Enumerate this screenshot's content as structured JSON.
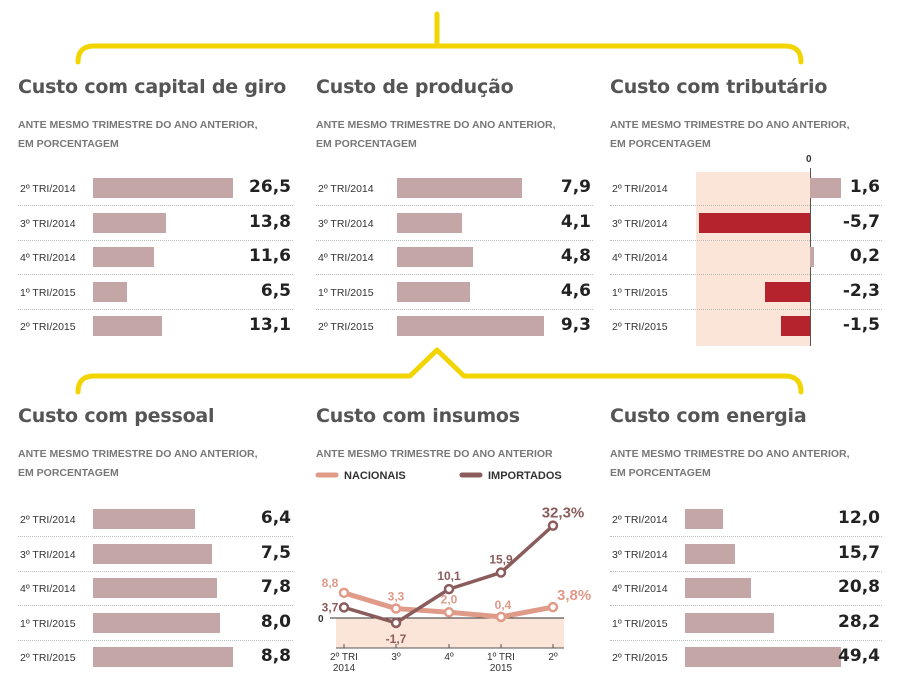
{
  "colors": {
    "accent": "#f2d400",
    "bar": "#c4a6a6",
    "negative": "#b5242c",
    "shade": "#fbe4d8",
    "nacionais": "#e09a88",
    "importados": "#8b5c5c"
  },
  "panels": [
    {
      "id": "capital-giro",
      "title": "Custo com capital de giro",
      "subtitle": [
        "ANTE MESMO TRIMESTRE DO ANO ANTERIOR,",
        "EM PORCENTAGEM"
      ],
      "rows": [
        {
          "label": "2º TRI/2014",
          "value": 26.5,
          "display": "26,5"
        },
        {
          "label": "3º TRI/2014",
          "value": 13.8,
          "display": "13,8"
        },
        {
          "label": "4º TRI/2014",
          "value": 11.6,
          "display": "11,6"
        },
        {
          "label": "1º TRI/2015",
          "value": 6.5,
          "display": "6,5"
        },
        {
          "label": "2º TRI/2015",
          "value": 13.1,
          "display": "13,1"
        }
      ]
    },
    {
      "id": "producao",
      "title": "Custo de produção",
      "subtitle": [
        "ANTE MESMO TRIMESTRE DO ANO ANTERIOR,",
        "EM PORCENTAGEM"
      ],
      "rows": [
        {
          "label": "2º TRI/2014",
          "value": 7.9,
          "display": "7,9"
        },
        {
          "label": "3º TRI/2014",
          "value": 4.1,
          "display": "4,1"
        },
        {
          "label": "4º TRI/2014",
          "value": 4.8,
          "display": "4,8"
        },
        {
          "label": "1º TRI/2015",
          "value": 4.6,
          "display": "4,6"
        },
        {
          "label": "2º TRI/2015",
          "value": 9.3,
          "display": "9,3"
        }
      ]
    },
    {
      "id": "tributario",
      "title": "Custo com tributário",
      "subtitle": [
        "ANTE MESMO TRIMESTRE DO ANO ANTERIOR,",
        "EM PORCENTAGEM"
      ],
      "zero_label": "0",
      "rows": [
        {
          "label": "2º TRI/2014",
          "value": 1.6,
          "display": "1,6"
        },
        {
          "label": "3º TRI/2014",
          "value": -5.7,
          "display": "-5,7"
        },
        {
          "label": "4º TRI/2014",
          "value": 0.2,
          "display": "0,2"
        },
        {
          "label": "1º TRI/2015",
          "value": -2.3,
          "display": "-2,3"
        },
        {
          "label": "2º TRI/2015",
          "value": -1.5,
          "display": "-1,5"
        }
      ]
    },
    {
      "id": "pessoal",
      "title": "Custo com pessoal",
      "subtitle": [
        "ANTE MESMO TRIMESTRE DO ANO ANTERIOR,",
        "EM PORCENTAGEM"
      ],
      "rows": [
        {
          "label": "2º TRI/2014",
          "value": 6.4,
          "display": "6,4"
        },
        {
          "label": "3º TRI/2014",
          "value": 7.5,
          "display": "7,5"
        },
        {
          "label": "4º TRI/2014",
          "value": 7.8,
          "display": "7,8"
        },
        {
          "label": "1º TRI/2015",
          "value": 8.0,
          "display": "8,0"
        },
        {
          "label": "2º TRI/2015",
          "value": 8.8,
          "display": "8,8"
        }
      ]
    },
    {
      "id": "energia",
      "title": "Custo com energia",
      "subtitle": [
        "ANTE MESMO TRIMESTRE DO ANO ANTERIOR,",
        "EM PORCENTAGEM"
      ],
      "rows": [
        {
          "label": "2º TRI/2014",
          "value": 12.0,
          "display": "12,0"
        },
        {
          "label": "3º TRI/2014",
          "value": 15.7,
          "display": "15,7"
        },
        {
          "label": "4º TRI/2014",
          "value": 20.8,
          "display": "20,8"
        },
        {
          "label": "1º TRI/2015",
          "value": 28.2,
          "display": "28,2"
        },
        {
          "label": "2º TRI/2015",
          "value": 49.4,
          "display": "49,4"
        }
      ]
    }
  ],
  "insumos": {
    "title": "Custo com insumos",
    "subtitle": "ANTE MESMO TRIMESTRE DO ANO ANTERIOR",
    "zero_label": "0",
    "x_labels": [
      [
        "2º TRI",
        "2014"
      ],
      [
        "3º"
      ],
      [
        "4º"
      ],
      [
        "1º TRI",
        "2015"
      ],
      [
        "2º"
      ]
    ],
    "series": [
      {
        "name": "NACIONAIS",
        "values": [
          8.8,
          3.3,
          2.0,
          0.4,
          3.8
        ],
        "labels": [
          "8,8",
          "3,3",
          "2,0",
          "0,4",
          "3,8%"
        ]
      },
      {
        "name": "IMPORTADOS",
        "values": [
          3.7,
          -1.7,
          10.1,
          15.9,
          32.3
        ],
        "labels": [
          "3,7",
          "-1,7",
          "10,1",
          "15,9",
          "32,3%"
        ]
      }
    ]
  },
  "chart_data": [
    {
      "type": "bar",
      "title": "Custo com capital de giro",
      "subtitle": "ANTE MESMO TRIMESTRE DO ANO ANTERIOR, EM PORCENTAGEM",
      "categories": [
        "2º TRI/2014",
        "3º TRI/2014",
        "4º TRI/2014",
        "1º TRI/2015",
        "2º TRI/2015"
      ],
      "values": [
        26.5,
        13.8,
        11.6,
        6.5,
        13.1
      ]
    },
    {
      "type": "bar",
      "title": "Custo de produção",
      "subtitle": "ANTE MESMO TRIMESTRE DO ANO ANTERIOR, EM PORCENTAGEM",
      "categories": [
        "2º TRI/2014",
        "3º TRI/2014",
        "4º TRI/2014",
        "1º TRI/2015",
        "2º TRI/2015"
      ],
      "values": [
        7.9,
        4.1,
        4.8,
        4.6,
        9.3
      ]
    },
    {
      "type": "bar",
      "title": "Custo com tributário",
      "subtitle": "ANTE MESMO TRIMESTRE DO ANO ANTERIOR, EM PORCENTAGEM",
      "categories": [
        "2º TRI/2014",
        "3º TRI/2014",
        "4º TRI/2014",
        "1º TRI/2015",
        "2º TRI/2015"
      ],
      "values": [
        1.6,
        -5.7,
        0.2,
        -2.3,
        -1.5
      ]
    },
    {
      "type": "bar",
      "title": "Custo com pessoal",
      "subtitle": "ANTE MESMO TRIMESTRE DO ANO ANTERIOR, EM PORCENTAGEM",
      "categories": [
        "2º TRI/2014",
        "3º TRI/2014",
        "4º TRI/2014",
        "1º TRI/2015",
        "2º TRI/2015"
      ],
      "values": [
        6.4,
        7.5,
        7.8,
        8.0,
        8.8
      ]
    },
    {
      "type": "line",
      "title": "Custo com insumos",
      "subtitle": "ANTE MESMO TRIMESTRE DO ANO ANTERIOR",
      "categories": [
        "2º TRI 2014",
        "3º",
        "4º",
        "1º TRI 2015",
        "2º"
      ],
      "series": [
        {
          "name": "NACIONAIS",
          "values": [
            8.8,
            3.3,
            2.0,
            0.4,
            3.8
          ]
        },
        {
          "name": "IMPORTADOS",
          "values": [
            3.7,
            -1.7,
            10.1,
            15.9,
            32.3
          ]
        }
      ],
      "legend": "top"
    },
    {
      "type": "bar",
      "title": "Custo com energia",
      "subtitle": "ANTE MESMO TRIMESTRE DO ANO ANTERIOR, EM PORCENTAGEM",
      "categories": [
        "2º TRI/2014",
        "3º TRI/2014",
        "4º TRI/2014",
        "1º TRI/2015",
        "2º TRI/2015"
      ],
      "values": [
        12.0,
        15.7,
        20.8,
        28.2,
        49.4
      ]
    }
  ]
}
